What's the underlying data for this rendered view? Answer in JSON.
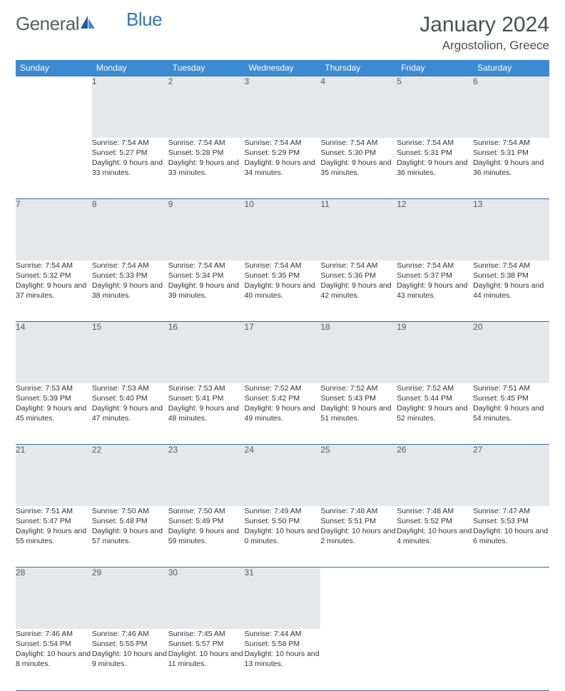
{
  "brand": {
    "general": "General",
    "blue": "Blue"
  },
  "header": {
    "title": "January 2024",
    "location": "Argostolion, Greece"
  },
  "colors": {
    "header_bg": "#3b8bd4",
    "rule": "#2f6fa8",
    "daynum_bg": "#e5e7ea"
  },
  "weekdays": [
    "Sunday",
    "Monday",
    "Tuesday",
    "Wednesday",
    "Thursday",
    "Friday",
    "Saturday"
  ],
  "weeks": [
    {
      "days": [
        {
          "num": "",
          "sunrise": "",
          "sunset": "",
          "daylight": ""
        },
        {
          "num": "1",
          "sunrise": "Sunrise: 7:54 AM",
          "sunset": "Sunset: 5:27 PM",
          "daylight": "Daylight: 9 hours and 33 minutes."
        },
        {
          "num": "2",
          "sunrise": "Sunrise: 7:54 AM",
          "sunset": "Sunset: 5:28 PM",
          "daylight": "Daylight: 9 hours and 33 minutes."
        },
        {
          "num": "3",
          "sunrise": "Sunrise: 7:54 AM",
          "sunset": "Sunset: 5:29 PM",
          "daylight": "Daylight: 9 hours and 34 minutes."
        },
        {
          "num": "4",
          "sunrise": "Sunrise: 7:54 AM",
          "sunset": "Sunset: 5:30 PM",
          "daylight": "Daylight: 9 hours and 35 minutes."
        },
        {
          "num": "5",
          "sunrise": "Sunrise: 7:54 AM",
          "sunset": "Sunset: 5:31 PM",
          "daylight": "Daylight: 9 hours and 36 minutes."
        },
        {
          "num": "6",
          "sunrise": "Sunrise: 7:54 AM",
          "sunset": "Sunset: 5:31 PM",
          "daylight": "Daylight: 9 hours and 36 minutes."
        }
      ]
    },
    {
      "days": [
        {
          "num": "7",
          "sunrise": "Sunrise: 7:54 AM",
          "sunset": "Sunset: 5:32 PM",
          "daylight": "Daylight: 9 hours and 37 minutes."
        },
        {
          "num": "8",
          "sunrise": "Sunrise: 7:54 AM",
          "sunset": "Sunset: 5:33 PM",
          "daylight": "Daylight: 9 hours and 38 minutes."
        },
        {
          "num": "9",
          "sunrise": "Sunrise: 7:54 AM",
          "sunset": "Sunset: 5:34 PM",
          "daylight": "Daylight: 9 hours and 39 minutes."
        },
        {
          "num": "10",
          "sunrise": "Sunrise: 7:54 AM",
          "sunset": "Sunset: 5:35 PM",
          "daylight": "Daylight: 9 hours and 40 minutes."
        },
        {
          "num": "11",
          "sunrise": "Sunrise: 7:54 AM",
          "sunset": "Sunset: 5:36 PM",
          "daylight": "Daylight: 9 hours and 42 minutes."
        },
        {
          "num": "12",
          "sunrise": "Sunrise: 7:54 AM",
          "sunset": "Sunset: 5:37 PM",
          "daylight": "Daylight: 9 hours and 43 minutes."
        },
        {
          "num": "13",
          "sunrise": "Sunrise: 7:54 AM",
          "sunset": "Sunset: 5:38 PM",
          "daylight": "Daylight: 9 hours and 44 minutes."
        }
      ]
    },
    {
      "days": [
        {
          "num": "14",
          "sunrise": "Sunrise: 7:53 AM",
          "sunset": "Sunset: 5:39 PM",
          "daylight": "Daylight: 9 hours and 45 minutes."
        },
        {
          "num": "15",
          "sunrise": "Sunrise: 7:53 AM",
          "sunset": "Sunset: 5:40 PM",
          "daylight": "Daylight: 9 hours and 47 minutes."
        },
        {
          "num": "16",
          "sunrise": "Sunrise: 7:53 AM",
          "sunset": "Sunset: 5:41 PM",
          "daylight": "Daylight: 9 hours and 48 minutes."
        },
        {
          "num": "17",
          "sunrise": "Sunrise: 7:52 AM",
          "sunset": "Sunset: 5:42 PM",
          "daylight": "Daylight: 9 hours and 49 minutes."
        },
        {
          "num": "18",
          "sunrise": "Sunrise: 7:52 AM",
          "sunset": "Sunset: 5:43 PM",
          "daylight": "Daylight: 9 hours and 51 minutes."
        },
        {
          "num": "19",
          "sunrise": "Sunrise: 7:52 AM",
          "sunset": "Sunset: 5:44 PM",
          "daylight": "Daylight: 9 hours and 52 minutes."
        },
        {
          "num": "20",
          "sunrise": "Sunrise: 7:51 AM",
          "sunset": "Sunset: 5:45 PM",
          "daylight": "Daylight: 9 hours and 54 minutes."
        }
      ]
    },
    {
      "days": [
        {
          "num": "21",
          "sunrise": "Sunrise: 7:51 AM",
          "sunset": "Sunset: 5:47 PM",
          "daylight": "Daylight: 9 hours and 55 minutes."
        },
        {
          "num": "22",
          "sunrise": "Sunrise: 7:50 AM",
          "sunset": "Sunset: 5:48 PM",
          "daylight": "Daylight: 9 hours and 57 minutes."
        },
        {
          "num": "23",
          "sunrise": "Sunrise: 7:50 AM",
          "sunset": "Sunset: 5:49 PM",
          "daylight": "Daylight: 9 hours and 59 minutes."
        },
        {
          "num": "24",
          "sunrise": "Sunrise: 7:49 AM",
          "sunset": "Sunset: 5:50 PM",
          "daylight": "Daylight: 10 hours and 0 minutes."
        },
        {
          "num": "25",
          "sunrise": "Sunrise: 7:48 AM",
          "sunset": "Sunset: 5:51 PM",
          "daylight": "Daylight: 10 hours and 2 minutes."
        },
        {
          "num": "26",
          "sunrise": "Sunrise: 7:48 AM",
          "sunset": "Sunset: 5:52 PM",
          "daylight": "Daylight: 10 hours and 4 minutes."
        },
        {
          "num": "27",
          "sunrise": "Sunrise: 7:47 AM",
          "sunset": "Sunset: 5:53 PM",
          "daylight": "Daylight: 10 hours and 6 minutes."
        }
      ]
    },
    {
      "days": [
        {
          "num": "28",
          "sunrise": "Sunrise: 7:46 AM",
          "sunset": "Sunset: 5:54 PM",
          "daylight": "Daylight: 10 hours and 8 minutes."
        },
        {
          "num": "29",
          "sunrise": "Sunrise: 7:46 AM",
          "sunset": "Sunset: 5:55 PM",
          "daylight": "Daylight: 10 hours and 9 minutes."
        },
        {
          "num": "30",
          "sunrise": "Sunrise: 7:45 AM",
          "sunset": "Sunset: 5:57 PM",
          "daylight": "Daylight: 10 hours and 11 minutes."
        },
        {
          "num": "31",
          "sunrise": "Sunrise: 7:44 AM",
          "sunset": "Sunset: 5:58 PM",
          "daylight": "Daylight: 10 hours and 13 minutes."
        },
        {
          "num": "",
          "sunrise": "",
          "sunset": "",
          "daylight": ""
        },
        {
          "num": "",
          "sunrise": "",
          "sunset": "",
          "daylight": ""
        },
        {
          "num": "",
          "sunrise": "",
          "sunset": "",
          "daylight": ""
        }
      ]
    }
  ]
}
